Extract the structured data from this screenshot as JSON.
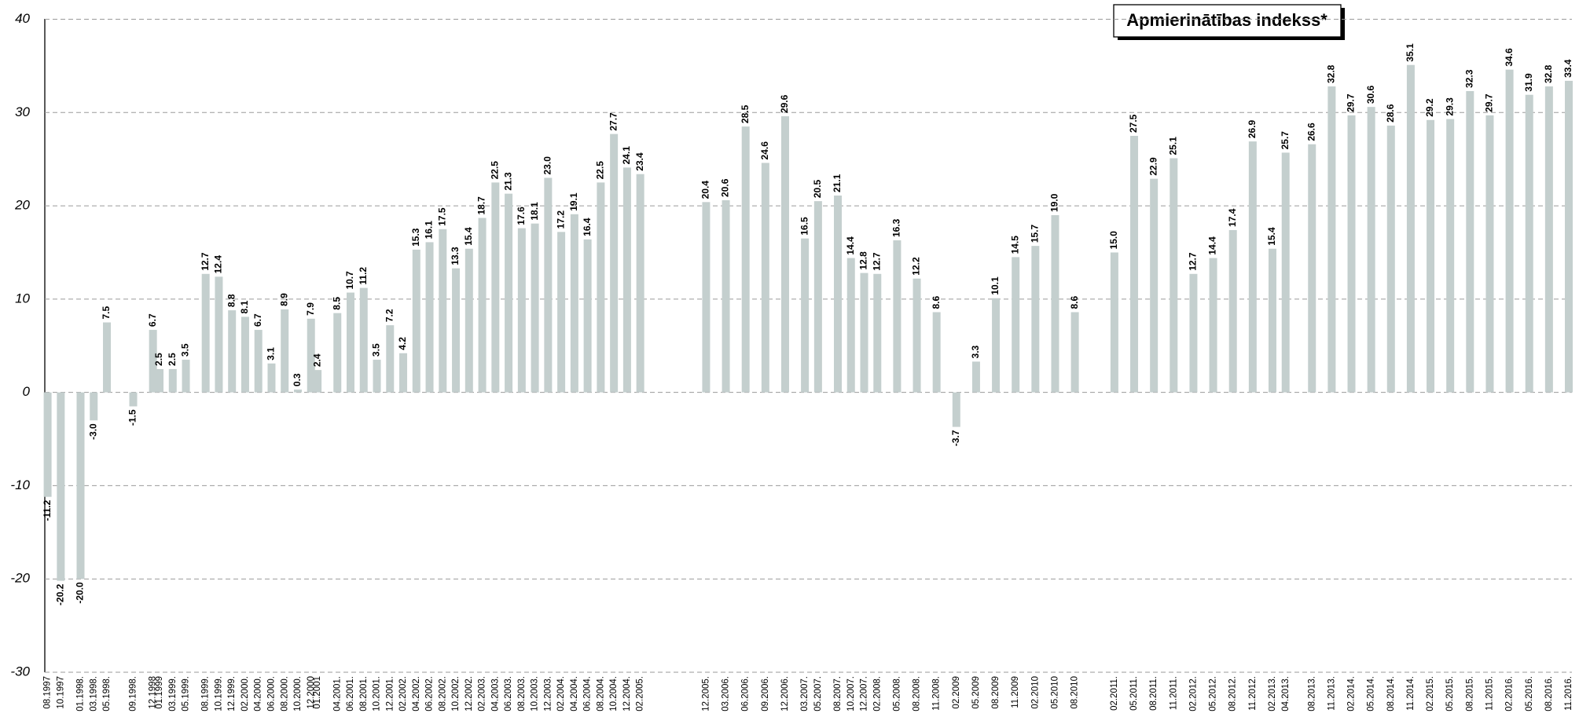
{
  "chart_data": {
    "type": "bar",
    "title": "Apmierinātības indekss*",
    "x": [
      "08.1997",
      "10.1997",
      "01.1998.",
      "03.1998.",
      "05.1998.",
      "09.1998.",
      "12.1998",
      "01.1999",
      "03.1999.",
      "05.1999.",
      "08.1999.",
      "10.1999.",
      "12.1999.",
      "02.2000.",
      "04.2000.",
      "06.2000.",
      "08.2000.",
      "10.2000.",
      "12.2000",
      "01.2001",
      "04.2001.",
      "06.2001.",
      "08.2001.",
      "10.2001.",
      "12.2001.",
      "02.2002.",
      "04.2002.",
      "06.2002.",
      "08.2002.",
      "10.2002.",
      "12.2002.",
      "02.2003.",
      "04.2003.",
      "06.2003.",
      "08.2003.",
      "10.2003.",
      "12.2003.",
      "02.2004.",
      "04.2004.",
      "06.2004.",
      "08.2004.",
      "10.2004.",
      "12.2004.",
      "02.2005.",
      "12.2005.",
      "03.2006.",
      "06.2006.",
      "09.2006.",
      "12.2006.",
      "03.2007.",
      "05.2007.",
      "08.2007.",
      "10.2007.",
      "12.2007.",
      "02.2008.",
      "05.2008.",
      "08.2008.",
      "11.2008.",
      "02.2009",
      "05.2009",
      "08.2009",
      "11.2009",
      "02.2010",
      "05.2010",
      "08.2010",
      "02.2011.",
      "05.2011.",
      "08.2011.",
      "11.2011.",
      "02.2012.",
      "05.2012.",
      "08.2012.",
      "11.2012.",
      "02.2013.",
      "04.2013.",
      "08.2013.",
      "11.2013.",
      "02.2014.",
      "05.2014.",
      "08.2014.",
      "11.2014.",
      "02.2015.",
      "05.2015.",
      "08.2015.",
      "11.2015.",
      "02.2016.",
      "05.2016.",
      "08.2016.",
      "11.2016."
    ],
    "values": [
      -11.2,
      -20.2,
      -20.0,
      -3.0,
      7.5,
      -1.5,
      6.7,
      2.5,
      2.5,
      3.5,
      12.7,
      12.4,
      8.8,
      8.1,
      6.7,
      3.1,
      8.9,
      0.3,
      7.9,
      2.4,
      8.5,
      10.7,
      11.2,
      3.5,
      7.2,
      4.2,
      15.3,
      16.1,
      17.5,
      13.3,
      15.4,
      18.7,
      22.5,
      21.3,
      17.6,
      18.1,
      23.0,
      17.2,
      19.1,
      16.4,
      22.5,
      27.7,
      24.1,
      23.4,
      20.4,
      20.6,
      28.5,
      24.6,
      29.6,
      16.5,
      20.5,
      21.1,
      14.4,
      12.8,
      12.7,
      16.3,
      12.2,
      8.6,
      -3.7,
      3.3,
      10.1,
      14.5,
      15.7,
      19.0,
      8.6,
      15.0,
      27.5,
      22.9,
      25.1,
      12.7,
      14.4,
      17.4,
      26.9,
      15.4,
      25.7,
      26.6,
      32.8,
      29.7,
      30.6,
      28.6,
      35.1,
      29.2,
      29.3,
      32.3,
      29.7,
      34.6,
      31.9,
      32.8,
      33.4
    ],
    "value_labels": [
      "-11.2",
      "-20.2",
      "-20.0",
      "-3.0",
      "7.5",
      "-1.5",
      "6.7",
      "2.5",
      "2.5",
      "3.5",
      "12.7",
      "12.4",
      "8.8",
      "8.1",
      "6.7",
      "3.1",
      "8.9",
      "0.3",
      "7.9",
      "2.4",
      "8.5",
      "10.7",
      "11.2",
      "3.5",
      "7.2",
      "4.2",
      "15.3",
      "16.1",
      "17.5",
      "13.3",
      "15.4",
      "18.7",
      "22.5",
      "21.3",
      "17.6",
      "18.1",
      "23.0",
      "17.2",
      "19.1",
      "16.4",
      "22.5",
      "27.7",
      "24.1",
      "23.4",
      "20.4",
      "20.6",
      "28.5",
      "24.6",
      "29.6",
      "16.5",
      "20.5",
      "21.1",
      "14.4",
      "12.8",
      "12.7",
      "16.3",
      "12.2",
      "8.6",
      "-3.7",
      "3.3",
      "10.1",
      "14.5",
      "15.7",
      "19.0",
      "8.6",
      "15.0",
      "27.5",
      "22.9",
      "25.1",
      "12.7",
      "14.4",
      "17.4",
      "26.9",
      "15.4",
      "25.7",
      "26.6",
      "32.8",
      "29.7",
      "30.6",
      "28.6",
      "35.1",
      "29.2",
      "29.3",
      "32.3",
      "29.7",
      "34.6",
      "31.9",
      "32.8",
      "33.4"
    ],
    "color": "#c4cfce",
    "ylim": [
      -30,
      40
    ],
    "yticks": [
      -30,
      -20,
      -10,
      0,
      10,
      20,
      30,
      40
    ],
    "grid": true
  }
}
